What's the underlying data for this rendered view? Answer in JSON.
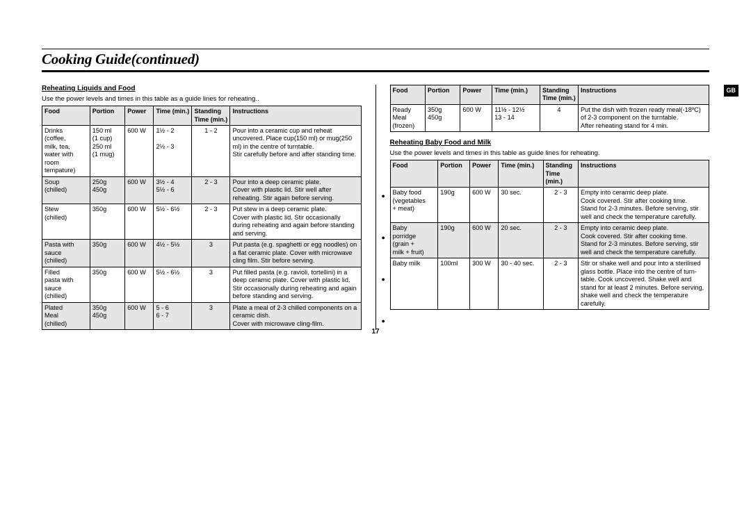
{
  "page_title": "Cooking Guide(continued)",
  "page_number": "17",
  "gb_label": "GB",
  "left": {
    "heading": "Reheating Liquids and Food",
    "intro": "Use the power levels and times in this table as a guide lines for reheating..",
    "columns": [
      "Food",
      "Portion",
      "Power",
      "Time (min.)",
      "Standing Time (min.)",
      "Instructions"
    ],
    "rows": [
      {
        "food": "Drinks\n(coffee,\nmilk, tea,\nwater  with\nroom\ntempature)",
        "portion": "150 ml\n(1 cup)\n250 ml\n(1 mug)",
        "power": "600 W",
        "time": "1½ - 2\n\n2½ - 3",
        "stand": "1 - 2",
        "instr": "Pour into a ceramic cup and  reheat uncovered. Place cup(150 ml) or mug(250 ml) in the centre of turntable.\nStir carefully before and after standing time."
      },
      {
        "food": "Soup\n(chilled)",
        "portion": "250g\n450g",
        "power": "600 W",
        "time": "3½ - 4\n5½ - 6",
        "stand": "2 - 3",
        "instr": "Pour into a deep ceramic plate.\nCover with plastic lid. Stir well after reheating. Stir again before serving.",
        "alt": true
      },
      {
        "food": "Stew\n(chilled)",
        "portion": "350g",
        "power": "600 W",
        "time": "5½ - 6½",
        "stand": "2 - 3",
        "instr": "Put stew in a deep ceramic plate.\nCover with plastic lid. Stir occasionally during reheating and again before standing and serving."
      },
      {
        "food": "Pasta with\nsauce\n(chilled)",
        "portion": "350g",
        "power": "600 W",
        "time": "4½ - 5½",
        "stand": "3",
        "instr": "Put pasta (e.g. spaghetti or egg noodles)  on a flat ceramic plate. Cover with microwave cling film. Stir before serving.",
        "alt": true
      },
      {
        "food": "Filled\npasta with\nsauce\n(chilled)",
        "portion": "350g",
        "power": "600 W",
        "time": "5½ - 6½",
        "stand": "3",
        "instr": "Put filled pasta (e.g. ravioli, tortellini) in a deep ceramic plate. Cover with plastic lid. Stir occasionally during reheating and again before standing and serving."
      },
      {
        "food": "Plated\nMeal\n(chilled)",
        "portion": "350g\n450g",
        "power": "600 W",
        "time": "5 - 6\n6 - 7",
        "stand": "3",
        "instr": "Plate a meal of  2-3  chilled components on a ceramic dish.\nCover with microwave cling-film.",
        "alt": true
      }
    ]
  },
  "right_top": {
    "columns": [
      "Food",
      "Portion",
      "Power",
      "Time (min.)",
      "Standing Time (min.)",
      "Instructions"
    ],
    "rows": [
      {
        "food": "Ready\nMeal\n(frozen)",
        "portion": "350g\n450g",
        "power": "600 W",
        "time": "11½ - 12½\n13 - 14",
        "stand": "4",
        "instr": "Put the dish with frozen ready meal(-18ºC) of  2-3 component on the turntable.\nAfter reheating stand for 4 min."
      }
    ]
  },
  "right_bottom": {
    "heading": "Reheating Baby Food and Milk",
    "intro": "Use the power levels and times in this table as guide lines for reheating.",
    "columns": [
      "Food",
      "Portion",
      "Power",
      "Time (min.)",
      "Standing Time (min.)",
      "Instructions"
    ],
    "rows": [
      {
        "food": "Baby food\n(vegetables\n+ meat)",
        "portion": "190g",
        "power": "600 W",
        "time": "30 sec.",
        "stand": "2 - 3",
        "instr": "Empty into ceramic deep plate.\nCook covered. Stir after cooking time.\nStand for 2-3 minutes. Before serving, stir well and check the temperature carefully."
      },
      {
        "food": "Baby\nporridge\n(grain +\nmilk + fruit)",
        "portion": "190g",
        "power": "600 W",
        "time": "20 sec.",
        "stand": "2 - 3",
        "instr": "Empty into ceramic deep plate.\nCook covered. Stir after cooking time.\nStand for 2-3 minutes. Before serving, stir well and check the temperature carefully.",
        "alt": true
      },
      {
        "food": "Baby milk",
        "portion": "100ml",
        "power": "300 W",
        "time": "30 - 40 sec.",
        "stand": "2 - 3",
        "instr": "Stir or shake well and pour into a sterilised  glass bottle. Place into the centre of turn-table. Cook uncovered. Shake well and stand for at least 2 minutes. Before serving, shake well and check the temperature carefully."
      }
    ]
  },
  "col_widths_left": [
    "15%",
    "11%",
    "9%",
    "12%",
    "12%",
    "41%"
  ],
  "col_widths_right_top": [
    "11%",
    "11%",
    "10%",
    "15%",
    "12%",
    "41%"
  ],
  "col_widths_right_bot": [
    "15%",
    "10%",
    "9%",
    "14%",
    "11%",
    "41%"
  ],
  "colors": {
    "th_bg": "#e5e5e5",
    "alt_bg": "#e5e5e5",
    "border": "#000000",
    "text": "#000000",
    "bg": "#ffffff"
  }
}
